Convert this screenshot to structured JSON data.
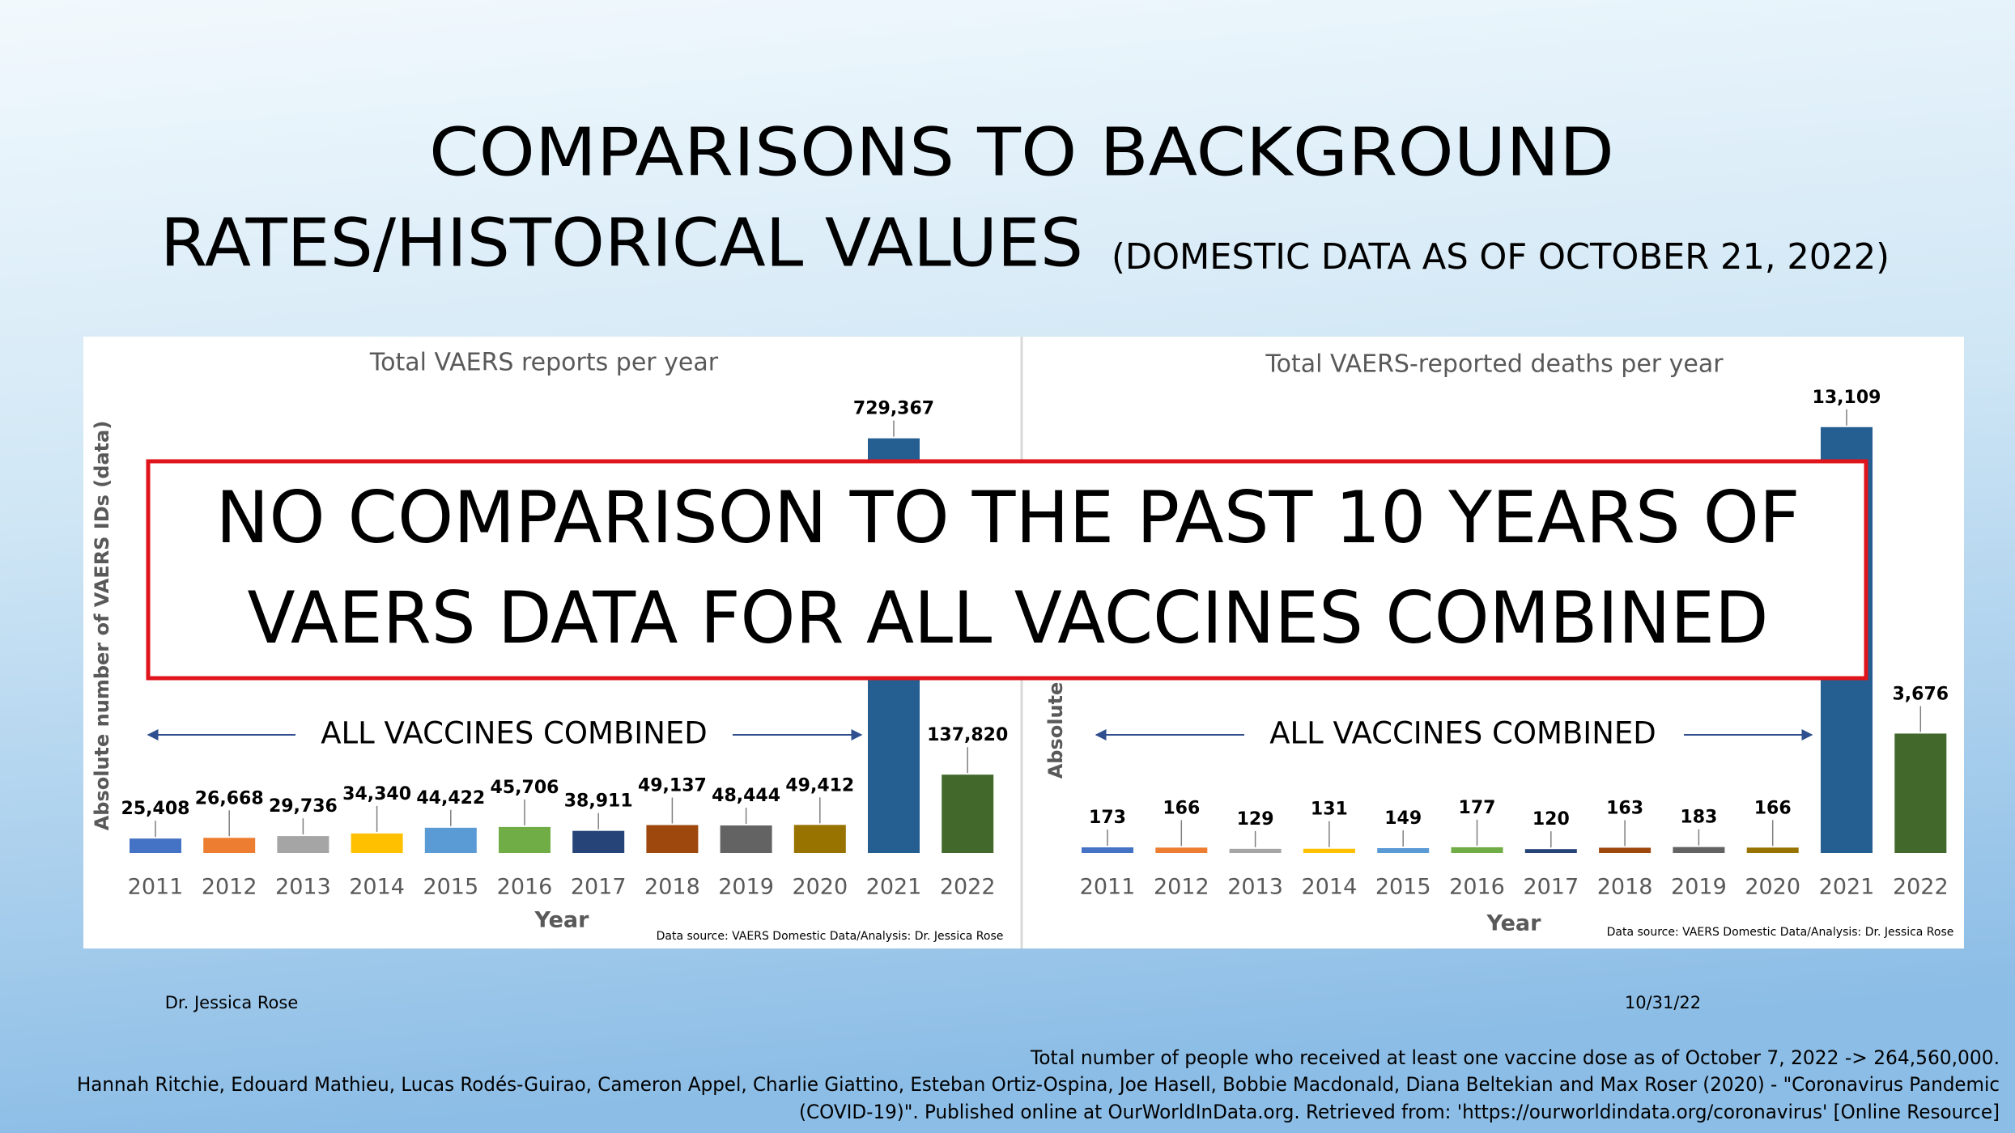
{
  "slide": {
    "title_line1": "COMPARISONS TO BACKGROUND",
    "title_line2": "RATES/HISTORICAL VALUES",
    "title_note": "(DOMESTIC DATA AS OF OCTOBER 21, 2022)"
  },
  "chart_data": [
    {
      "type": "bar",
      "title": "Total VAERS reports per year",
      "categories": [
        "2011",
        "2012",
        "2013",
        "2014",
        "2015",
        "2016",
        "2017",
        "2018",
        "2019",
        "2020",
        "2021",
        "2022"
      ],
      "values": [
        25408,
        26668,
        29736,
        34340,
        44422,
        45706,
        38911,
        49137,
        48444,
        49412,
        729367,
        137820
      ],
      "value_labels": [
        "25,408",
        "26,668",
        "29,736",
        "34,340",
        "44,422",
        "45,706",
        "38,911",
        "49,137",
        "48,444",
        "49,412",
        "729,367",
        "137,820"
      ],
      "colors": [
        "#4472c4",
        "#ed7d31",
        "#a5a5a5",
        "#ffc000",
        "#5b9bd5",
        "#70ad47",
        "#264478",
        "#9e480e",
        "#636363",
        "#997300",
        "#255e91",
        "#43682b"
      ],
      "ylim": [
        0,
        800000
      ],
      "x_label": "Year",
      "y_label": "Absolute number of VAERS IDs (data)",
      "source": "Data source: VAERS Domestic Data/Analysis: Dr. Jessica Rose",
      "annotation": "ALL VACCINES COMBINED"
    },
    {
      "type": "bar",
      "title": "Total VAERS-reported deaths per year",
      "categories": [
        "2011",
        "2012",
        "2013",
        "2014",
        "2015",
        "2016",
        "2017",
        "2018",
        "2019",
        "2020",
        "2021",
        "2022"
      ],
      "values": [
        173,
        166,
        129,
        131,
        149,
        177,
        120,
        163,
        183,
        166,
        13109,
        3676
      ],
      "value_labels": [
        "173",
        "166",
        "129",
        "131",
        "149",
        "177",
        "120",
        "163",
        "183",
        "166",
        "13,109",
        "3,676"
      ],
      "colors": [
        "#4472c4",
        "#ed7d31",
        "#a5a5a5",
        "#ffc000",
        "#5b9bd5",
        "#70ad47",
        "#264478",
        "#9e480e",
        "#636363",
        "#997300",
        "#255e91",
        "#43682b"
      ],
      "ylim": [
        0,
        14000
      ],
      "x_label": "Year",
      "y_label": "Absolute number of deaths",
      "source": "Data source: VAERS Domestic Data/Analysis: Dr. Jessica Rose",
      "annotation": "ALL VACCINES COMBINED"
    }
  ],
  "overlay": {
    "lines": [
      "NO COMPARISON TO THE PAST 10 YEARS OF",
      "VAERS DATA FOR ALL VACCINES COMBINED"
    ]
  },
  "footer": {
    "author": "Dr. Jessica Rose",
    "date": "10/31/22",
    "notes": [
      "Total number of people who received at least one vaccine dose as of October 7, 2022 -> 264,560,000.",
      "Hannah Ritchie, Edouard Mathieu, Lucas Rodés-Guirao, Cameron Appel, Charlie Giattino, Esteban Ortiz-Ospina, Joe Hasell, Bobbie Macdonald, Diana Beltekian and Max Roser (2020) - \"Coronavirus Pandemic",
      "(COVID-19)\". Published online at OurWorldInData.org. Retrieved from: 'https://ourworldindata.org/coronavirus' [Online Resource]"
    ]
  }
}
